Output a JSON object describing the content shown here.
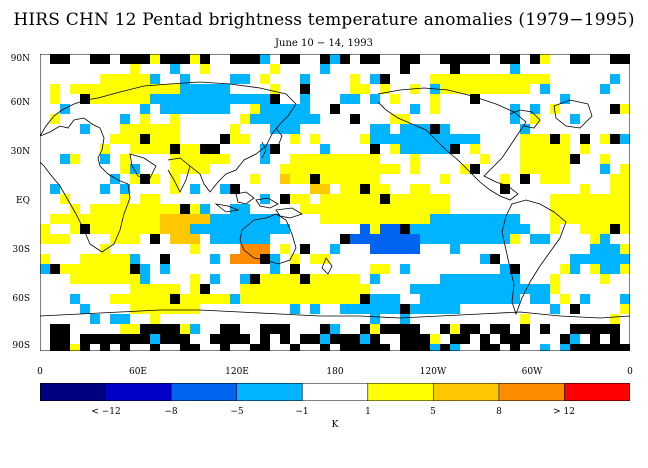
{
  "title": "HIRS CHN 12 Pentad brightness temperature anomalies (1979−1995)",
  "subtitle": "June 10 − 14, 1993",
  "latitude_labels": [
    "90N",
    "60N",
    "30N",
    "EQ",
    "30S",
    "60S",
    "90S"
  ],
  "longitude_labels": [
    "0",
    "60E",
    "120E",
    "180",
    "120W",
    "60W",
    "0"
  ],
  "colorbar": {
    "colors": [
      "#000080",
      "#0000c8",
      "#0064f0",
      "#00b4ff",
      "#ffffff",
      "#ffff00",
      "#ffc800",
      "#ff8c00",
      "#ff0000"
    ],
    "labels": [
      "< −12",
      "−8",
      "−5",
      "−1",
      "1",
      "5",
      "8",
      "> 12"
    ],
    "unit": "K"
  },
  "map_colors": {
    "missing": "#000000",
    "coastline": "#000000",
    "positive_weak": "#ffff00",
    "positive_mid": "#ffc800",
    "positive_strong": "#ff8c00",
    "negative_weak": "#00b4ff",
    "negative_mid": "#0064f0"
  }
}
